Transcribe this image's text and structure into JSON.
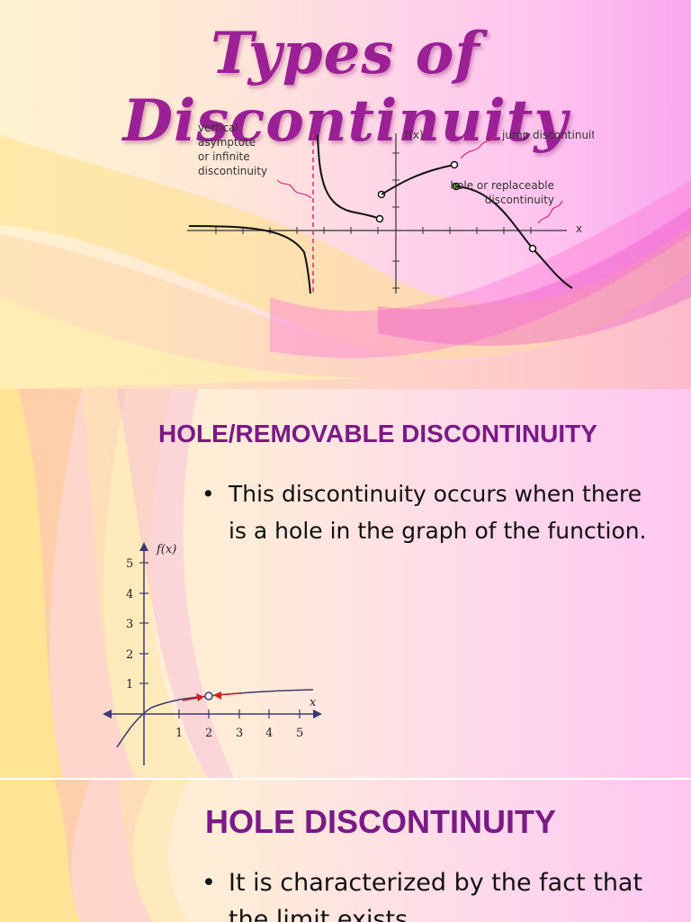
{
  "slides": [
    {
      "title": "Types of Discontinuity",
      "labels": {
        "vertical": "vertical",
        "asymptote": "asymptote",
        "or_infinite": "or infinite",
        "discontinuity": "discontinuity",
        "fx": "f(x)",
        "jump": "jump discontinuities",
        "hole1": "hole or replaceable",
        "hole2": "discontinuity",
        "x": "x"
      }
    },
    {
      "title": "HOLE/REMOVABLE DISCONTINUITY",
      "bullet": "This discontinuity occurs when there is a hole in the graph of the function.",
      "graph": {
        "fx": "f(x)",
        "x": "x",
        "yticks": [
          "5",
          "4",
          "3",
          "2",
          "1"
        ],
        "xticks": [
          "1",
          "2",
          "3",
          "4",
          "5"
        ],
        "hole_x": 2
      }
    },
    {
      "title": "HOLE DISCONTINUITY",
      "bullet": "It is characterized by the fact that the limit exists."
    }
  ],
  "bullet_char": "•",
  "colors": {
    "title": "#9b1f95",
    "heading": "#7b1a86",
    "accent": "#d6287a"
  }
}
